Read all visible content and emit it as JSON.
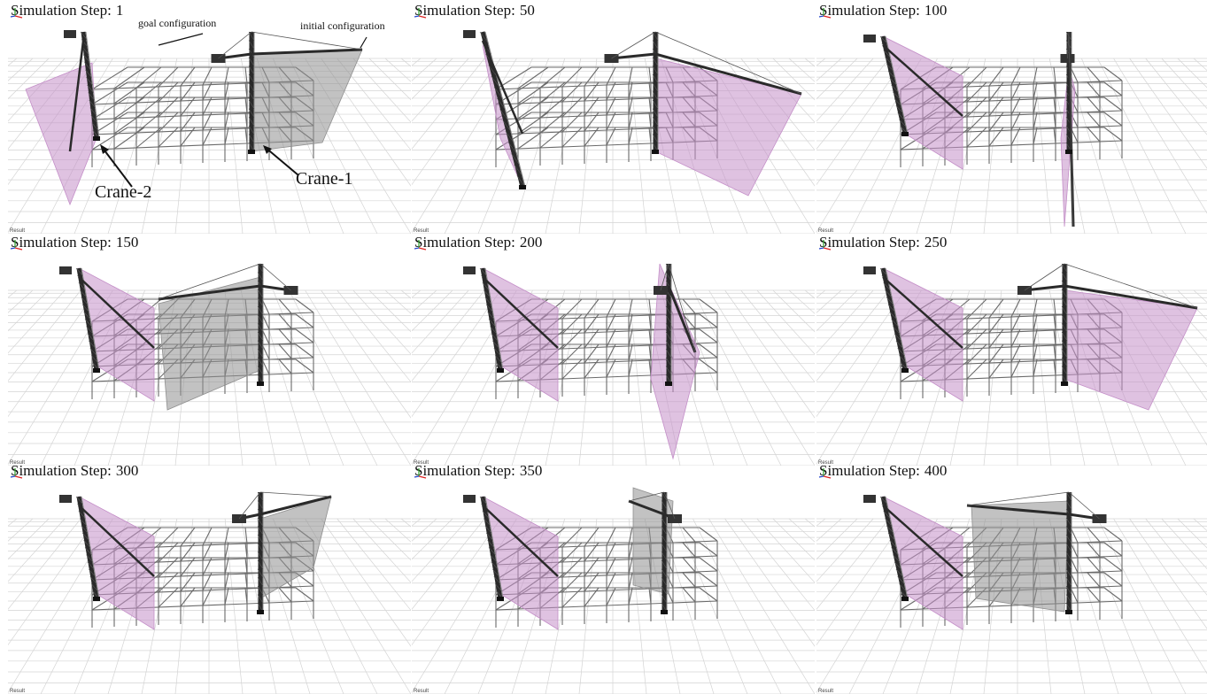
{
  "step_prefix": "Simulation Step:",
  "axis_caption": "Result",
  "panels": [
    {
      "step": "1"
    },
    {
      "step": "50"
    },
    {
      "step": "100"
    },
    {
      "step": "150"
    },
    {
      "step": "200"
    },
    {
      "step": "250"
    },
    {
      "step": "300"
    },
    {
      "step": "350"
    },
    {
      "step": "400"
    }
  ],
  "annotations": {
    "goal": "goal configuration",
    "initial": "initial configuration",
    "crane1": "Crane-1",
    "crane2": "Crane-2"
  },
  "colors": {
    "crane2_sweep": "#c48fc8",
    "crane1_sweep": "#8f8f8f",
    "grid": "#d4d4d4",
    "frame": "#6a6a6a",
    "crane": "#2a2a2a"
  }
}
